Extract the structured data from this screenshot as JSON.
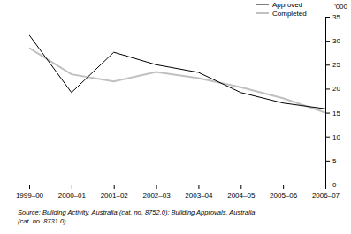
{
  "chart_data": {
    "type": "line",
    "y_label": "'000",
    "categories": [
      "1999–00",
      "2000–01",
      "2001–02",
      "2002–03",
      "2003–04",
      "2004–05",
      "2005–06",
      "2006–07"
    ],
    "series": [
      {
        "name": "Approved",
        "color": "#000000",
        "values": [
          31.2,
          19.2,
          27.6,
          25.0,
          23.4,
          19.2,
          17.0,
          15.8
        ]
      },
      {
        "name": "Completed",
        "color": "#c0c0c0",
        "values": [
          28.5,
          23.0,
          21.5,
          23.5,
          22.2,
          20.3,
          18.0,
          15.0
        ]
      }
    ],
    "ylim": [
      0,
      35
    ],
    "yticks": [
      0,
      5,
      10,
      15,
      20,
      25,
      30,
      35
    ],
    "grid": false,
    "legend": "top-right",
    "source": [
      "Source: Building Activity, Australia (cat. no. 8752.0); Building Approvals, Australia",
      "(cat. no. 8731.0)."
    ]
  }
}
